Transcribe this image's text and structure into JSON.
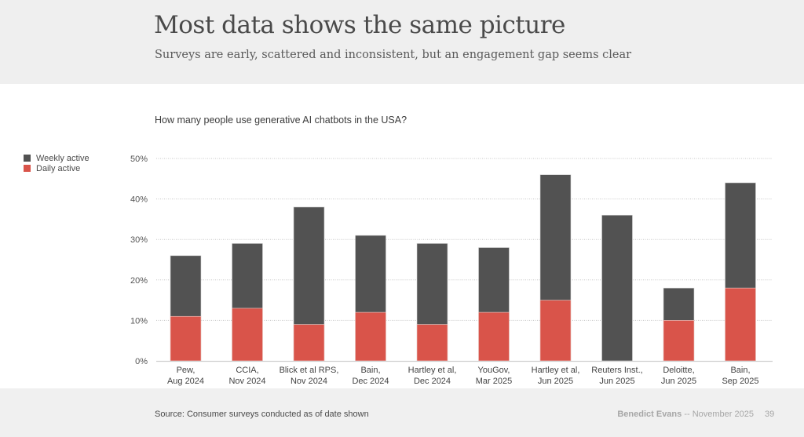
{
  "header": {
    "title": "Most data shows the same picture",
    "subtitle": "Surveys are early, scattered and inconsistent, but an engagement gap seems clear"
  },
  "footer": {
    "source": "Source: Consumer surveys conducted as of date shown",
    "author": "Benedict Evans",
    "separator": "--",
    "date": "November 2025",
    "page_number": "39"
  },
  "chart_data": {
    "type": "bar",
    "title": "How many people use generative AI chatbots in the USA?",
    "xlabel": "",
    "ylabel": "",
    "ylim": [
      0,
      50
    ],
    "yticks": [
      0,
      10,
      20,
      30,
      40,
      50
    ],
    "ytick_labels": [
      "0%",
      "10%",
      "20%",
      "30%",
      "40%",
      "50%"
    ],
    "grid": true,
    "legend_position": "left",
    "categories": [
      [
        "Pew,",
        "Aug 2024"
      ],
      [
        "CCIA,",
        "Nov 2024"
      ],
      [
        "Blick et al RPS,",
        "Nov 2024"
      ],
      [
        "Bain,",
        "Dec 2024"
      ],
      [
        "Hartley et al,",
        "Dec 2024"
      ],
      [
        "YouGov,",
        "Mar 2025"
      ],
      [
        "Hartley et al,",
        "Jun 2025"
      ],
      [
        "Reuters Inst.,",
        "Jun 2025"
      ],
      [
        "Deloitte,",
        "Jun 2025"
      ],
      [
        "Bain,",
        "Sep 2025"
      ]
    ],
    "series": [
      {
        "name": "Weekly active",
        "color": "#525252",
        "values": [
          26,
          29,
          38,
          31,
          29,
          28,
          46,
          36,
          18,
          44
        ]
      },
      {
        "name": "Daily active",
        "color": "#d9544a",
        "values": [
          11,
          13,
          9,
          12,
          9,
          12,
          15,
          null,
          10,
          18
        ]
      }
    ]
  }
}
